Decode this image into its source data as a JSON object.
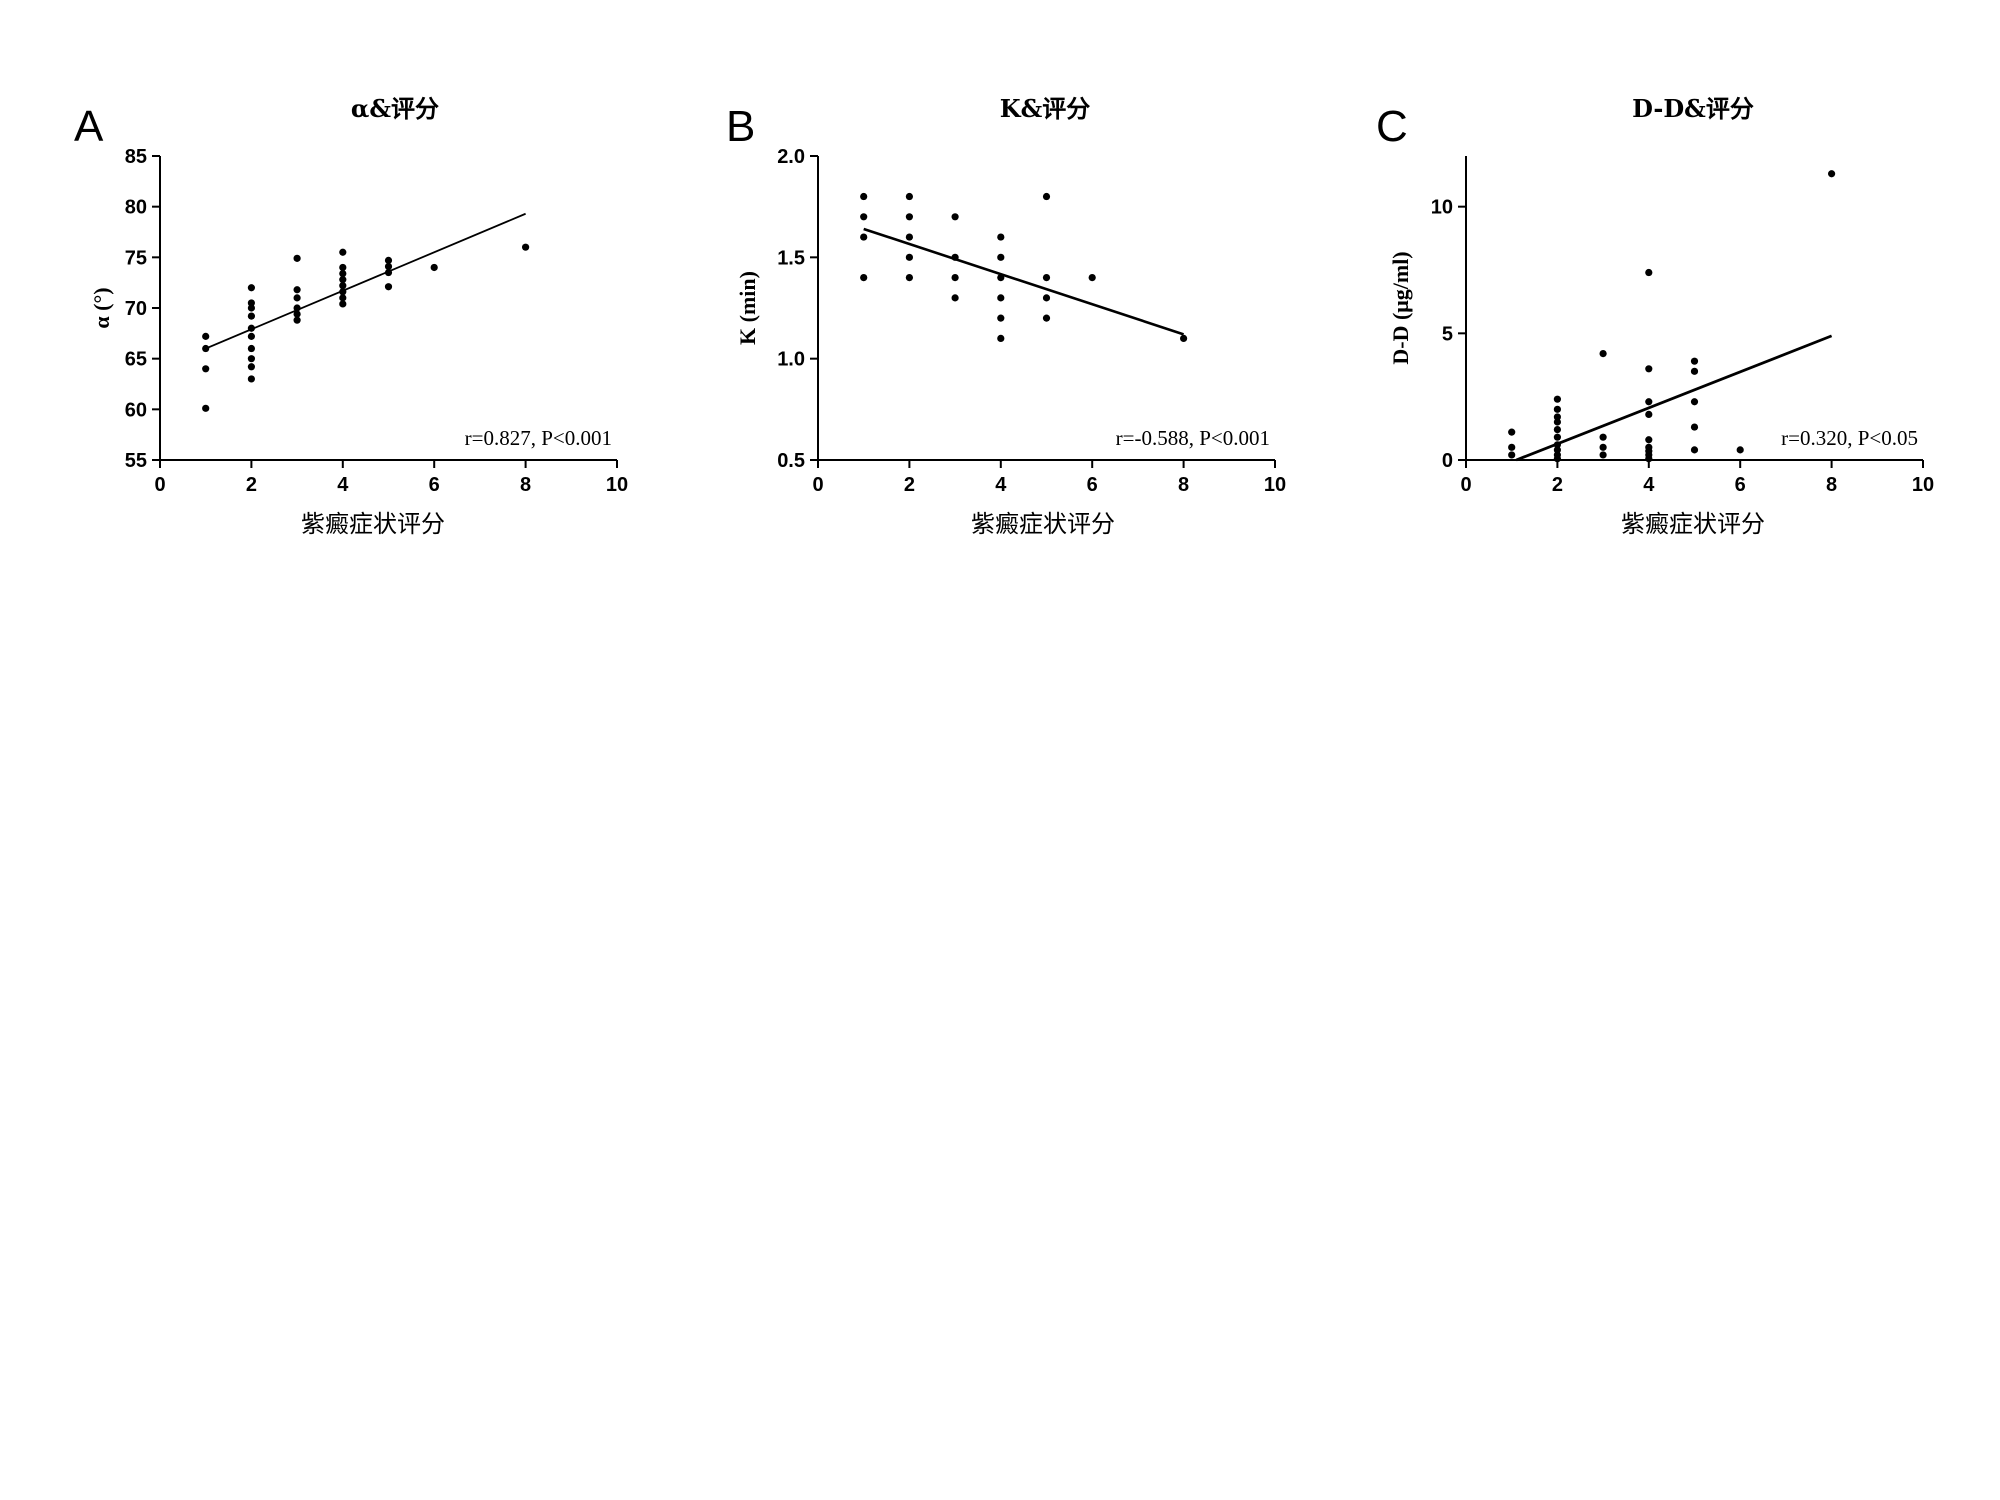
{
  "chart_data": [
    {
      "type": "scatter",
      "panel_label": "A",
      "title": "α&评分",
      "xlabel": "紫癜症状评分",
      "ylabel": "α (°)",
      "xlim": [
        0,
        10
      ],
      "ylim": [
        55,
        85
      ],
      "xticks": [
        0,
        2,
        4,
        6,
        8,
        10
      ],
      "yticks": [
        55,
        60,
        65,
        70,
        75,
        80,
        85
      ],
      "grid": false,
      "annotation": "r=0.827,   P<0.001",
      "points": [
        [
          1,
          60.1
        ],
        [
          1,
          64.0
        ],
        [
          1,
          66.0
        ],
        [
          1,
          67.2
        ],
        [
          2,
          63.0
        ],
        [
          2,
          64.2
        ],
        [
          2,
          65.0
        ],
        [
          2,
          66.0
        ],
        [
          2,
          67.2
        ],
        [
          2,
          68.0
        ],
        [
          2,
          69.2
        ],
        [
          2,
          70.0
        ],
        [
          2,
          70.5
        ],
        [
          2,
          72.0
        ],
        [
          3,
          68.8
        ],
        [
          3,
          69.4
        ],
        [
          3,
          70.0
        ],
        [
          3,
          71.0
        ],
        [
          3,
          71.8
        ],
        [
          3,
          74.9
        ],
        [
          4,
          70.4
        ],
        [
          4,
          71.0
        ],
        [
          4,
          71.6
        ],
        [
          4,
          72.2
        ],
        [
          4,
          72.8
        ],
        [
          4,
          73.4
        ],
        [
          4,
          74.0
        ],
        [
          4,
          75.5
        ],
        [
          5,
          72.1
        ],
        [
          5,
          73.5
        ],
        [
          5,
          74.1
        ],
        [
          5,
          74.7
        ],
        [
          6,
          74.0
        ],
        [
          8,
          76.0
        ]
      ],
      "fit_line": {
        "x": [
          1,
          8
        ],
        "y": [
          66.0,
          79.3
        ]
      }
    },
    {
      "type": "scatter",
      "panel_label": "B",
      "title": "K&评分",
      "xlabel": "紫癜症状评分",
      "ylabel": "K (min)",
      "xlim": [
        0,
        10
      ],
      "ylim": [
        0.5,
        2.0
      ],
      "xticks": [
        0,
        2,
        4,
        6,
        8,
        10
      ],
      "yticks": [
        0.5,
        1.0,
        1.5,
        2.0
      ],
      "ytick_labels": [
        "0.5",
        "1.0",
        "1.5",
        "2.0"
      ],
      "grid": false,
      "annotation": "r=-0.588,   P<0.001",
      "points": [
        [
          1,
          1.4
        ],
        [
          1,
          1.6
        ],
        [
          1,
          1.7
        ],
        [
          1,
          1.8
        ],
        [
          2,
          1.4
        ],
        [
          2,
          1.5
        ],
        [
          2,
          1.6
        ],
        [
          2,
          1.7
        ],
        [
          2,
          1.8
        ],
        [
          3,
          1.3
        ],
        [
          3,
          1.4
        ],
        [
          3,
          1.5
        ],
        [
          3,
          1.7
        ],
        [
          4,
          1.1
        ],
        [
          4,
          1.2
        ],
        [
          4,
          1.3
        ],
        [
          4,
          1.4
        ],
        [
          4,
          1.5
        ],
        [
          4,
          1.6
        ],
        [
          5,
          1.2
        ],
        [
          5,
          1.3
        ],
        [
          5,
          1.4
        ],
        [
          5,
          1.8
        ],
        [
          6,
          1.4
        ],
        [
          8,
          1.1
        ]
      ],
      "fit_line": {
        "x": [
          1,
          8
        ],
        "y": [
          1.64,
          1.12
        ]
      }
    },
    {
      "type": "scatter",
      "panel_label": "C",
      "title": "D-D&评分",
      "xlabel": "紫癜症状评分",
      "ylabel": "D-D (μg/ml)",
      "xlim": [
        0,
        10
      ],
      "ylim": [
        0,
        12
      ],
      "xticks": [
        0,
        2,
        4,
        6,
        8,
        10
      ],
      "yticks": [
        0,
        5,
        10
      ],
      "grid": false,
      "annotation": "r=0.320,   P<0.05",
      "points": [
        [
          1,
          0.2
        ],
        [
          1,
          0.5
        ],
        [
          1,
          1.1
        ],
        [
          2,
          0.05
        ],
        [
          2,
          0.2
        ],
        [
          2,
          0.4
        ],
        [
          2,
          0.6
        ],
        [
          2,
          0.9
        ],
        [
          2,
          1.2
        ],
        [
          2,
          1.5
        ],
        [
          2,
          1.7
        ],
        [
          2,
          2.0
        ],
        [
          2,
          2.4
        ],
        [
          3,
          0.2
        ],
        [
          3,
          0.5
        ],
        [
          3,
          0.9
        ],
        [
          3,
          4.2
        ],
        [
          4,
          0.05
        ],
        [
          4,
          0.2
        ],
        [
          4,
          0.35
        ],
        [
          4,
          0.5
        ],
        [
          4,
          0.8
        ],
        [
          4,
          1.8
        ],
        [
          4,
          2.3
        ],
        [
          4,
          3.6
        ],
        [
          4,
          7.4
        ],
        [
          5,
          0.4
        ],
        [
          5,
          1.3
        ],
        [
          5,
          2.3
        ],
        [
          5,
          3.5
        ],
        [
          5,
          3.9
        ],
        [
          6,
          0.4
        ],
        [
          8,
          11.3
        ]
      ],
      "fit_line": {
        "x": [
          1.1,
          8
        ],
        "y": [
          0.0,
          4.9
        ]
      }
    }
  ]
}
